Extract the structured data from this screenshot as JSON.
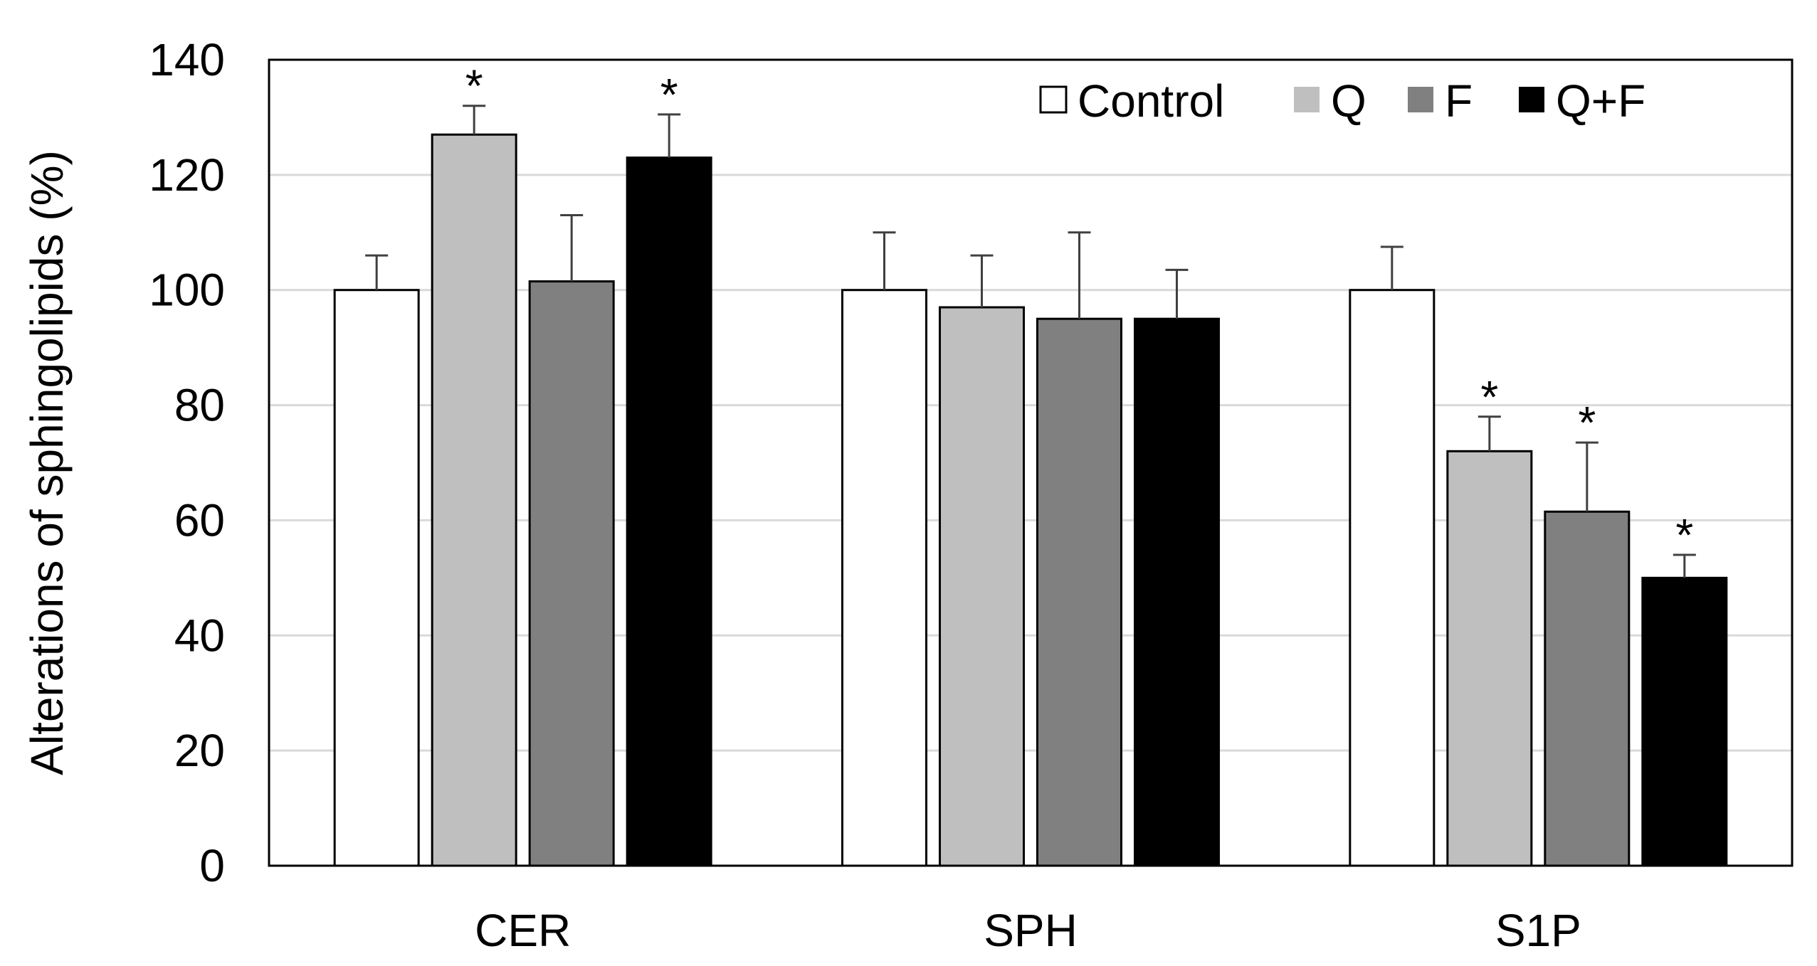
{
  "chart_data": {
    "type": "bar",
    "title": "",
    "xlabel": "",
    "ylabel": "Alterations of sphingolipids (%)",
    "ylim": [
      0,
      140
    ],
    "yticks": [
      0,
      20,
      40,
      60,
      80,
      100,
      120,
      140
    ],
    "grid": true,
    "legend_position": "top-right",
    "categories": [
      "CER",
      "SPH",
      "S1P"
    ],
    "series": [
      {
        "name": "Control",
        "color": "#ffffff",
        "values": [
          100,
          100,
          100
        ],
        "errors": [
          6,
          10,
          7.5
        ],
        "significant": [
          false,
          false,
          false
        ]
      },
      {
        "name": "Q",
        "color": "#bfbfbf",
        "values": [
          127,
          97,
          72
        ],
        "errors": [
          5,
          9,
          6
        ],
        "significant": [
          true,
          false,
          true
        ]
      },
      {
        "name": "F",
        "color": "#808080",
        "values": [
          101.5,
          95,
          61.5
        ],
        "errors": [
          11.5,
          15,
          12
        ],
        "significant": [
          false,
          false,
          true
        ]
      },
      {
        "name": "Q+F",
        "color": "#000000",
        "values": [
          123,
          95,
          50
        ],
        "errors": [
          7.5,
          8.5,
          4
        ],
        "significant": [
          true,
          false,
          true
        ]
      }
    ],
    "significance_marker": "*"
  }
}
